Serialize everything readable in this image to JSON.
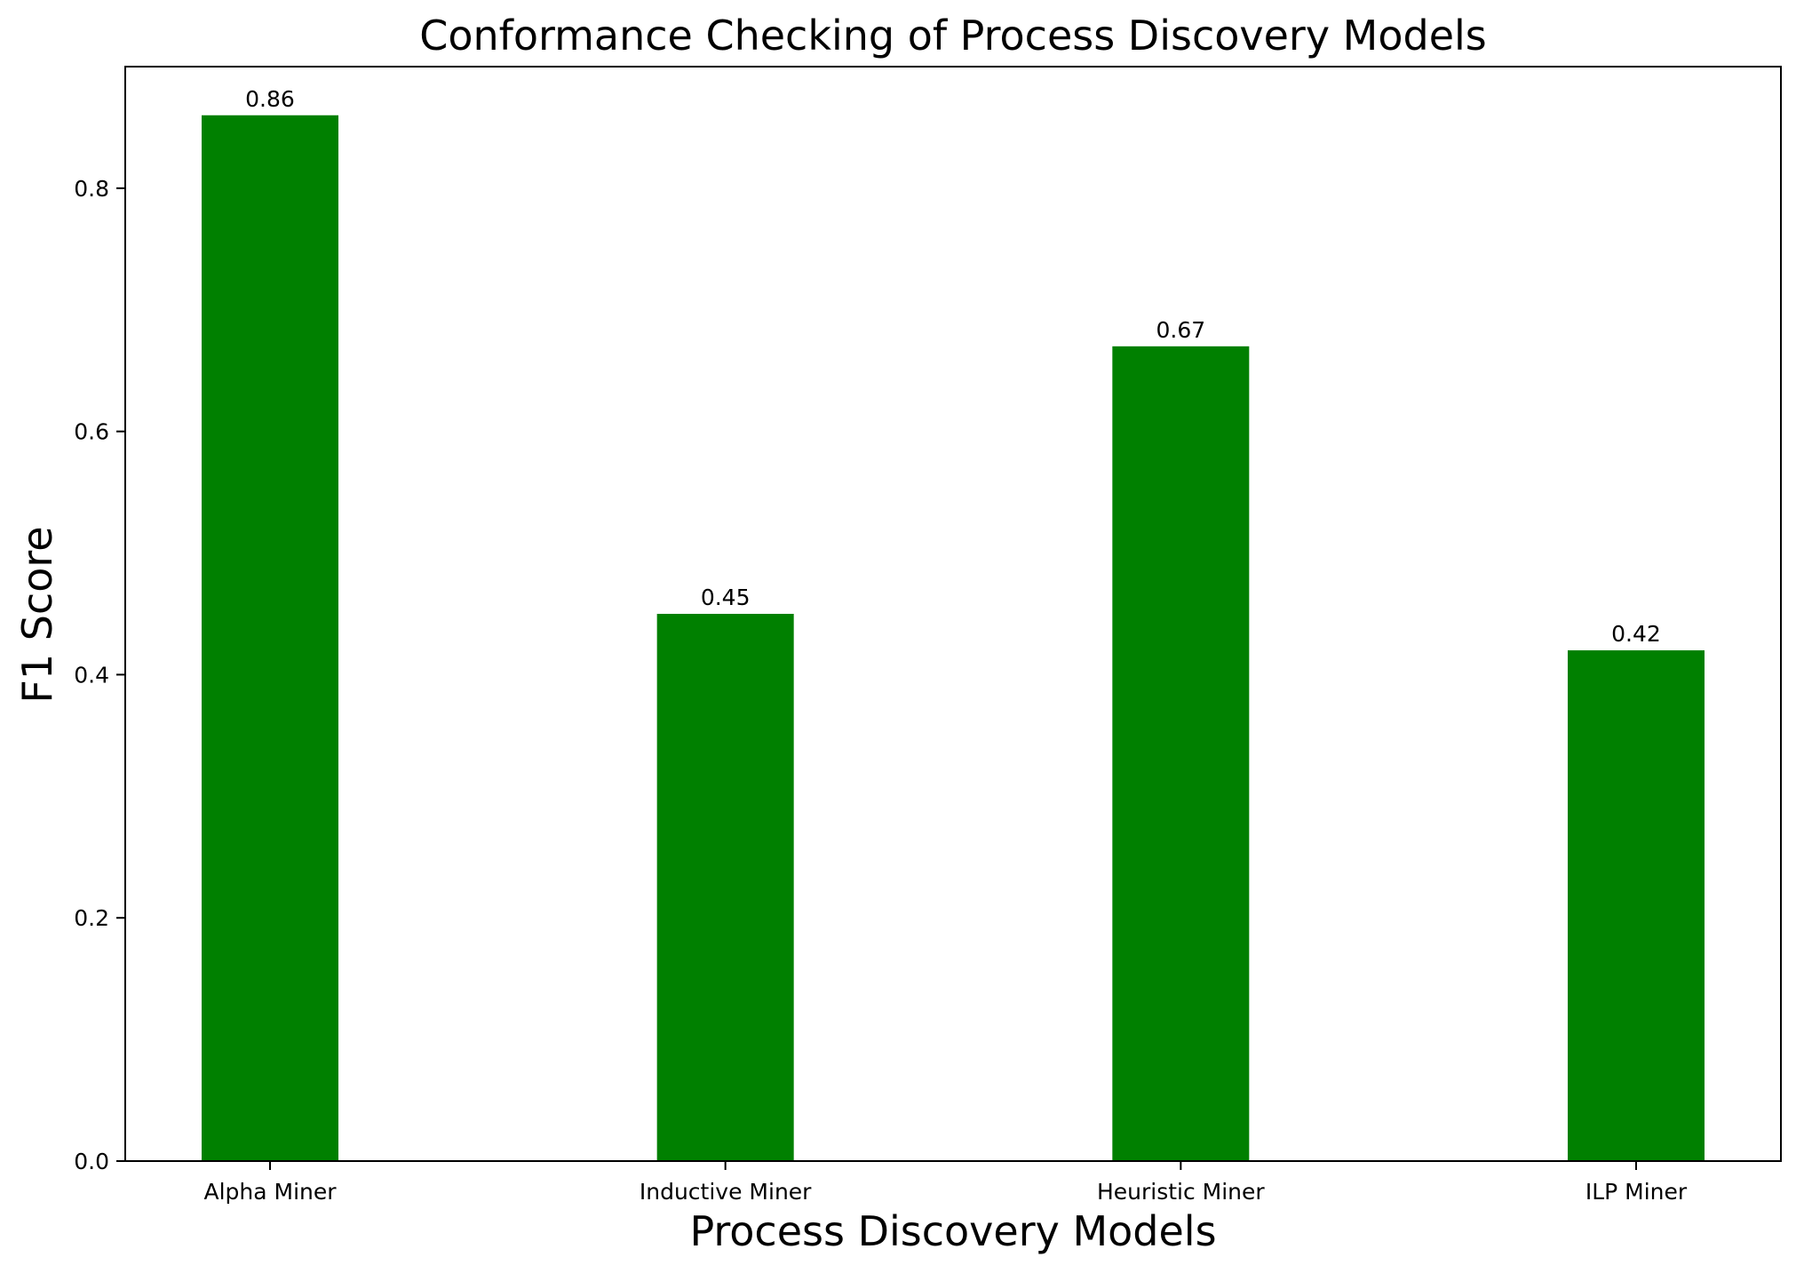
{
  "chart_data": {
    "type": "bar",
    "title": "Conformance Checking of Process Discovery Models",
    "xlabel": "Process Discovery Models",
    "ylabel": "F1 Score",
    "categories": [
      "Alpha Miner",
      "Inductive Miner",
      "Heuristic Miner",
      "ILP Miner"
    ],
    "values": [
      0.86,
      0.45,
      0.67,
      0.42
    ],
    "value_labels": [
      "0.86",
      "0.45",
      "0.67",
      "0.42"
    ],
    "ylim": [
      0,
      0.9
    ],
    "yticks": [
      0.0,
      0.2,
      0.4,
      0.6,
      0.8
    ],
    "ytick_labels": [
      "0.0",
      "0.2",
      "0.4",
      "0.6",
      "0.8"
    ],
    "grid": false,
    "legend": "none",
    "bar_color": "#008000"
  }
}
